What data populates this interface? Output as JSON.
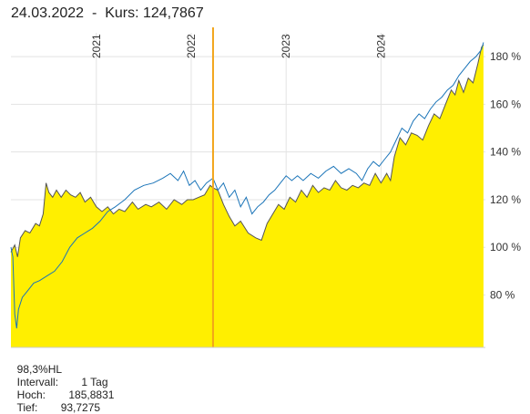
{
  "header": {
    "date": "24.03.2022",
    "separator": "-",
    "kurs_label": "Kurs:",
    "kurs_value": "124,7867"
  },
  "footer": {
    "range_label": "98,3%HL",
    "interval_label": "Intervall:",
    "interval_value": "1 Tag",
    "high_label": "Hoch:",
    "high_value": "185,8831",
    "low_label": "Tief:",
    "low_value": "93,7275"
  },
  "colors": {
    "fill": "#ffef00",
    "primary_line": "#555555",
    "comparison_line": "#1a74b8",
    "cursor_line": "#f2a51a",
    "grid": "#e3e3e3"
  },
  "chart_data": {
    "type": "area",
    "x_unit": "year",
    "xlim": [
      2020.1,
      2025.1
    ],
    "ylim": [
      58,
      190
    ],
    "y_unit": "%",
    "y_ticks": [
      {
        "value": 80,
        "label": "80 %"
      },
      {
        "value": 100,
        "label": "100 %"
      },
      {
        "value": 120,
        "label": "120 %"
      },
      {
        "value": 140,
        "label": "140 %"
      },
      {
        "value": 160,
        "label": "160 %"
      },
      {
        "value": 180,
        "label": "180 %"
      }
    ],
    "x_ticks": [
      {
        "value": 2021,
        "label": "2021"
      },
      {
        "value": 2022,
        "label": "2022"
      },
      {
        "value": 2023,
        "label": "2023"
      },
      {
        "value": 2024,
        "label": "2024"
      }
    ],
    "cursor": {
      "x": 2022.23
    },
    "grid": true,
    "series": [
      {
        "role": "area",
        "points": [
          [
            2020.1,
            98
          ],
          [
            2020.14,
            101
          ],
          [
            2020.17,
            96
          ],
          [
            2020.2,
            104
          ],
          [
            2020.25,
            107
          ],
          [
            2020.3,
            106
          ],
          [
            2020.36,
            110
          ],
          [
            2020.4,
            109
          ],
          [
            2020.44,
            114
          ],
          [
            2020.47,
            127
          ],
          [
            2020.5,
            123
          ],
          [
            2020.54,
            121
          ],
          [
            2020.58,
            124
          ],
          [
            2020.63,
            121
          ],
          [
            2020.68,
            124
          ],
          [
            2020.73,
            122
          ],
          [
            2020.78,
            121
          ],
          [
            2020.83,
            123
          ],
          [
            2020.88,
            119
          ],
          [
            2020.94,
            121
          ],
          [
            2021.0,
            117
          ],
          [
            2021.06,
            115
          ],
          [
            2021.12,
            117
          ],
          [
            2021.18,
            114
          ],
          [
            2021.24,
            116
          ],
          [
            2021.3,
            115
          ],
          [
            2021.38,
            119
          ],
          [
            2021.44,
            116
          ],
          [
            2021.52,
            118
          ],
          [
            2021.58,
            117
          ],
          [
            2021.66,
            119
          ],
          [
            2021.74,
            116
          ],
          [
            2021.82,
            120
          ],
          [
            2021.9,
            118
          ],
          [
            2021.96,
            120
          ],
          [
            2022.02,
            120
          ],
          [
            2022.08,
            121
          ],
          [
            2022.14,
            122
          ],
          [
            2022.2,
            126
          ],
          [
            2022.23,
            125
          ],
          [
            2022.28,
            124
          ],
          [
            2022.34,
            118
          ],
          [
            2022.4,
            113
          ],
          [
            2022.46,
            109
          ],
          [
            2022.52,
            111
          ],
          [
            2022.6,
            106
          ],
          [
            2022.68,
            104
          ],
          [
            2022.74,
            103
          ],
          [
            2022.8,
            110
          ],
          [
            2022.86,
            114
          ],
          [
            2022.92,
            118
          ],
          [
            2022.98,
            116
          ],
          [
            2023.04,
            121
          ],
          [
            2023.1,
            119
          ],
          [
            2023.16,
            124
          ],
          [
            2023.22,
            121
          ],
          [
            2023.28,
            126
          ],
          [
            2023.34,
            123
          ],
          [
            2023.4,
            125
          ],
          [
            2023.46,
            124
          ],
          [
            2023.52,
            128
          ],
          [
            2023.58,
            125
          ],
          [
            2023.64,
            124
          ],
          [
            2023.7,
            126
          ],
          [
            2023.76,
            125
          ],
          [
            2023.82,
            127
          ],
          [
            2023.88,
            126
          ],
          [
            2023.94,
            131
          ],
          [
            2024.0,
            127
          ],
          [
            2024.06,
            131
          ],
          [
            2024.1,
            128
          ],
          [
            2024.14,
            138
          ],
          [
            2024.2,
            146
          ],
          [
            2024.26,
            143
          ],
          [
            2024.32,
            148
          ],
          [
            2024.38,
            147
          ],
          [
            2024.44,
            145
          ],
          [
            2024.5,
            151
          ],
          [
            2024.56,
            156
          ],
          [
            2024.62,
            154
          ],
          [
            2024.68,
            160
          ],
          [
            2024.74,
            166
          ],
          [
            2024.78,
            164
          ],
          [
            2024.82,
            170
          ],
          [
            2024.87,
            165
          ],
          [
            2024.92,
            171
          ],
          [
            2024.97,
            169
          ],
          [
            2025.02,
            177
          ],
          [
            2025.06,
            184
          ],
          [
            2025.08,
            185
          ]
        ]
      },
      {
        "role": "comparison",
        "points": [
          [
            2020.1,
            100
          ],
          [
            2020.12,
            96
          ],
          [
            2020.14,
            72
          ],
          [
            2020.16,
            66
          ],
          [
            2020.18,
            74
          ],
          [
            2020.22,
            79
          ],
          [
            2020.28,
            82
          ],
          [
            2020.34,
            85
          ],
          [
            2020.4,
            86
          ],
          [
            2020.48,
            88
          ],
          [
            2020.56,
            90
          ],
          [
            2020.64,
            94
          ],
          [
            2020.72,
            100
          ],
          [
            2020.8,
            104
          ],
          [
            2020.88,
            106
          ],
          [
            2020.96,
            108
          ],
          [
            2021.04,
            111
          ],
          [
            2021.12,
            115
          ],
          [
            2021.2,
            117
          ],
          [
            2021.3,
            120
          ],
          [
            2021.4,
            124
          ],
          [
            2021.5,
            126
          ],
          [
            2021.6,
            127
          ],
          [
            2021.7,
            129
          ],
          [
            2021.78,
            131
          ],
          [
            2021.86,
            128
          ],
          [
            2021.92,
            132
          ],
          [
            2021.98,
            126
          ],
          [
            2022.04,
            128
          ],
          [
            2022.1,
            124
          ],
          [
            2022.16,
            127
          ],
          [
            2022.23,
            129
          ],
          [
            2022.28,
            124
          ],
          [
            2022.34,
            127
          ],
          [
            2022.4,
            121
          ],
          [
            2022.46,
            124
          ],
          [
            2022.52,
            117
          ],
          [
            2022.58,
            121
          ],
          [
            2022.64,
            114
          ],
          [
            2022.7,
            117
          ],
          [
            2022.76,
            119
          ],
          [
            2022.82,
            122
          ],
          [
            2022.88,
            124
          ],
          [
            2022.94,
            127
          ],
          [
            2023.0,
            130
          ],
          [
            2023.06,
            128
          ],
          [
            2023.12,
            130
          ],
          [
            2023.18,
            128
          ],
          [
            2023.26,
            131
          ],
          [
            2023.34,
            129
          ],
          [
            2023.42,
            132
          ],
          [
            2023.5,
            134
          ],
          [
            2023.58,
            131
          ],
          [
            2023.66,
            133
          ],
          [
            2023.74,
            131
          ],
          [
            2023.8,
            128
          ],
          [
            2023.86,
            133
          ],
          [
            2023.92,
            136
          ],
          [
            2023.98,
            134
          ],
          [
            2024.04,
            137
          ],
          [
            2024.1,
            140
          ],
          [
            2024.16,
            145
          ],
          [
            2024.22,
            150
          ],
          [
            2024.28,
            148
          ],
          [
            2024.34,
            153
          ],
          [
            2024.4,
            156
          ],
          [
            2024.46,
            154
          ],
          [
            2024.52,
            158
          ],
          [
            2024.58,
            161
          ],
          [
            2024.64,
            163
          ],
          [
            2024.7,
            166
          ],
          [
            2024.76,
            168
          ],
          [
            2024.82,
            172
          ],
          [
            2024.88,
            175
          ],
          [
            2024.94,
            178
          ],
          [
            2025.0,
            180
          ],
          [
            2025.06,
            183
          ],
          [
            2025.08,
            186
          ]
        ]
      }
    ]
  }
}
